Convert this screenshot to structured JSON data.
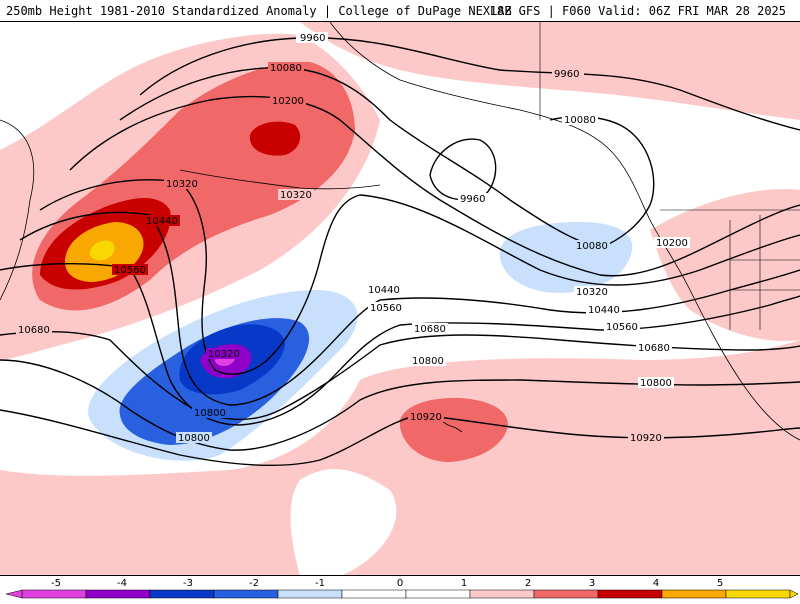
{
  "header": {
    "title_left": "250mb Height 1981-2010 Standardized Anomaly | College of DuPage NEXLAB",
    "title_right": "18Z GFS | F060 Valid: 06Z FRI MAR 28 2025"
  },
  "contour_labels": [
    "9960",
    "9960",
    "9960",
    "10080",
    "10080",
    "10080",
    "10200",
    "10200",
    "10320",
    "10320",
    "10320",
    "10320",
    "10440",
    "10440",
    "10440",
    "10560",
    "10560",
    "10560",
    "10680",
    "10680",
    "10680",
    "10800",
    "10800",
    "10800",
    "10920",
    "10920"
  ],
  "colorbar": {
    "ticks": [
      "-5",
      "-4",
      "-3",
      "-2",
      "-1",
      "0",
      "1",
      "2",
      "3",
      "4",
      "5"
    ],
    "colors": [
      "#e040e0",
      "#9000c8",
      "#0838c8",
      "#2860e0",
      "#c8e0fc",
      "#ffffff",
      "#ffffff",
      "#fcc8c8",
      "#f06868",
      "#c80000",
      "#f8a800",
      "#f8d800"
    ]
  }
}
